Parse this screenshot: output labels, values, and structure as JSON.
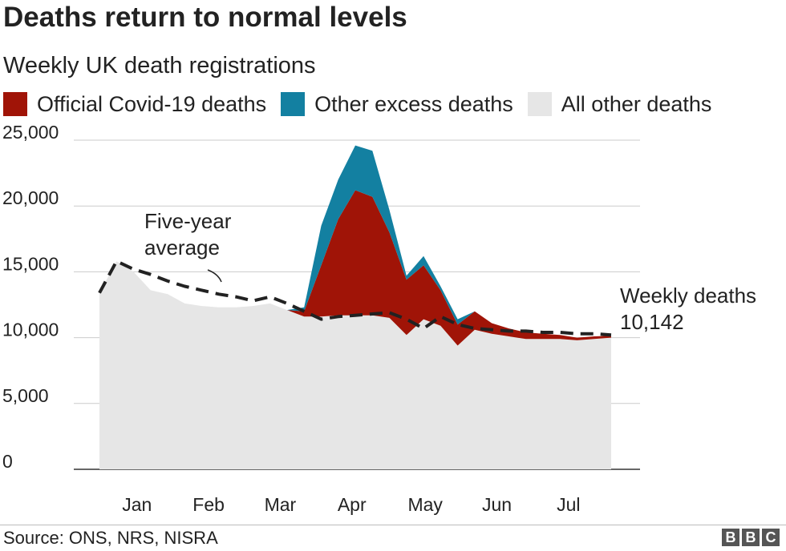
{
  "chart_data": {
    "type": "area",
    "title": "Deaths return to normal levels",
    "subtitle": "Weekly UK death registrations",
    "legend": [
      {
        "label": "Official Covid-19 deaths",
        "color": "#a01407"
      },
      {
        "label": "Other excess deaths",
        "color": "#1380a1"
      },
      {
        "label": "All other deaths",
        "color": "#e6e6e6"
      }
    ],
    "legend_placement": "top",
    "grid": true,
    "ylim": [
      0,
      25000
    ],
    "y_ticks": [
      0,
      5000,
      10000,
      15000,
      20000,
      25000
    ],
    "y_tick_labels": [
      "0",
      "5,000",
      "10,000",
      "15,000",
      "20,000",
      "25,000"
    ],
    "x_tick_labels": [
      "Jan",
      "Feb",
      "Mar",
      "Apr",
      "May",
      "Jun",
      "Jul"
    ],
    "x_tick_positions": [
      1.2,
      5.4,
      9.6,
      13.8,
      18.1,
      22.3,
      26.5
    ],
    "xlim": [
      -1,
      29
    ],
    "x_week": [
      -1,
      0,
      1,
      2,
      3,
      4,
      5,
      6,
      7,
      8,
      9,
      10,
      11,
      12,
      13,
      14,
      15,
      16,
      17,
      18,
      19,
      20,
      21,
      22,
      23,
      24,
      25,
      26,
      27,
      28,
      29
    ],
    "series": [
      {
        "name": "All other deaths",
        "values": [
          13400,
          15800,
          15000,
          13600,
          13300,
          12600,
          12400,
          12300,
          12300,
          12400,
          12600,
          12100,
          11600,
          11600,
          11700,
          11700,
          11700,
          11500,
          10200,
          11400,
          10900,
          9400,
          10600,
          10300,
          10100,
          9900,
          9900,
          9900,
          9800,
          9900,
          10000
        ]
      },
      {
        "name": "Official Covid-19 deaths",
        "values": [
          0,
          0,
          0,
          0,
          0,
          0,
          0,
          0,
          0,
          0,
          0,
          0,
          400,
          3900,
          7300,
          9500,
          9000,
          6500,
          4200,
          4100,
          2700,
          1600,
          1400,
          800,
          600,
          500,
          400,
          300,
          200,
          200,
          142
        ]
      },
      {
        "name": "Other excess deaths",
        "values": [
          0,
          0,
          0,
          0,
          0,
          0,
          0,
          0,
          0,
          0,
          0,
          0,
          300,
          3000,
          3000,
          3400,
          3500,
          1700,
          300,
          700,
          300,
          400,
          0,
          0,
          0,
          0,
          0,
          0,
          0,
          0,
          0
        ]
      }
    ],
    "five_year_average": {
      "label": "Five-year average",
      "values": [
        13400,
        15800,
        15200,
        14800,
        14300,
        13900,
        13600,
        13300,
        13100,
        12800,
        13100,
        12600,
        12000,
        11400,
        11600,
        11700,
        11800,
        11900,
        11400,
        10700,
        11600,
        11000,
        10700,
        10600,
        10500,
        10500,
        10400,
        10400,
        10300,
        10300,
        10200
      ]
    },
    "annotations": [
      {
        "text": "Five-year",
        "target": "five_year_average"
      },
      {
        "text": "average",
        "target": "five_year_average"
      },
      {
        "text": "Weekly deaths",
        "target": "latest"
      },
      {
        "text": "10,142",
        "target": "latest"
      }
    ]
  },
  "footer": {
    "source": "Source: ONS, NRS, NISRA",
    "logo_letters": [
      "B",
      "B",
      "C"
    ]
  }
}
